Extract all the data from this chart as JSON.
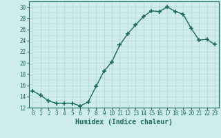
{
  "x": [
    0,
    1,
    2,
    3,
    4,
    5,
    6,
    7,
    8,
    9,
    10,
    11,
    12,
    13,
    14,
    15,
    16,
    17,
    18,
    19,
    20,
    21,
    22,
    23
  ],
  "y": [
    15,
    14.2,
    13.2,
    12.8,
    12.8,
    12.8,
    12.3,
    13,
    15.8,
    18.5,
    20.2,
    23.2,
    25.2,
    26.8,
    28.3,
    29.3,
    29.2,
    30,
    29.2,
    28.7,
    26.2,
    24.1,
    24.2,
    23.3
  ],
  "line_color": "#1a6b5a",
  "marker": "+",
  "marker_size": 4,
  "marker_lw": 1.2,
  "bg_color": "#ceecea",
  "grid_color": "#b8d8d5",
  "xlabel": "Humidex (Indice chaleur)",
  "ylim": [
    12,
    31
  ],
  "xlim": [
    -0.5,
    23.5
  ],
  "yticks": [
    12,
    14,
    16,
    18,
    20,
    22,
    24,
    26,
    28,
    30
  ],
  "xticks": [
    0,
    1,
    2,
    3,
    4,
    5,
    6,
    7,
    8,
    9,
    10,
    11,
    12,
    13,
    14,
    15,
    16,
    17,
    18,
    19,
    20,
    21,
    22,
    23
  ],
  "tick_fontsize": 5.5,
  "label_fontsize": 7.0,
  "spine_color": "#1a6b5a"
}
